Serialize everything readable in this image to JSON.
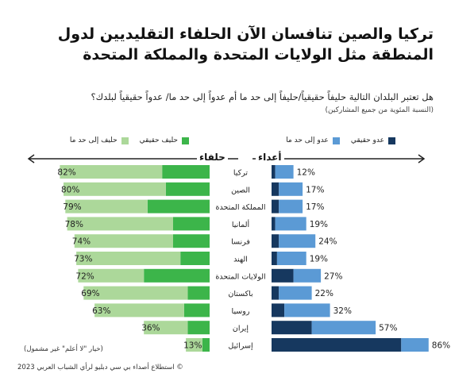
{
  "title": "تركيا والصين تنافسان الآن الحلفاء التقليديين لدول المنطقة مثل الولايات المتحدة والمملكة المتحدة",
  "question": "هل تعتبر البلدان التالية حليفاً حقيقياً/حليفاً إلى حد ما أم عدواً إلى حد ما/ عدواً حقيقياً لبلدك؟",
  "note": "(النسبة المئوية من جميع المشاركين)",
  "legend": {
    "true_ally": "حليف حقيقي",
    "somewhat_ally": "حليف إلى حد ما",
    "true_enemy": "عدو حقيقي",
    "somewhat_enemy": "عدو إلى حد ما"
  },
  "group_labels": {
    "allies": "حلفاء",
    "enemies": "أعداء"
  },
  "footnote": "(خيار \"لا أعلم\" غير مشمول)",
  "copyright": "© استطلاع أصداء بي سي دبليو لرأي الشباب العربي 2023",
  "colors": {
    "true_ally": "#3cb54a",
    "somewhat_ally": "#acd89a",
    "true_enemy": "#16385f",
    "somewhat_enemy": "#5b9ad5"
  },
  "chart_data": {
    "type": "bar",
    "categories": [
      "تركيا",
      "الصين",
      "المملكة المتحدة",
      "ألمانيا",
      "فرنسا",
      "الهند",
      "الولايات المتحدة",
      "باكستان",
      "روسيا",
      "إيران",
      "إسرائيل"
    ],
    "series": [
      {
        "name": "حليف حقيقي",
        "values": [
          26,
          24,
          34,
          20,
          20,
          16,
          36,
          12,
          14,
          12,
          4
        ]
      },
      {
        "name": "حليف إلى حد ما",
        "values": [
          56,
          56,
          45,
          58,
          54,
          57,
          36,
          57,
          49,
          24,
          9
        ]
      },
      {
        "name": "عدو حقيقي",
        "values": [
          2,
          4,
          4,
          2,
          4,
          3,
          12,
          4,
          7,
          22,
          71
        ]
      },
      {
        "name": "عدو إلى حد ما",
        "values": [
          10,
          13,
          13,
          17,
          20,
          16,
          15,
          18,
          25,
          35,
          15
        ]
      }
    ],
    "ally_totals": [
      "82%",
      "80%",
      "79%",
      "78%",
      "74%",
      "73%",
      "72%",
      "69%",
      "63%",
      "36%",
      "13%"
    ],
    "enemy_totals": [
      "12%",
      "17%",
      "17%",
      "19%",
      "24%",
      "19%",
      "27%",
      "22%",
      "32%",
      "57%",
      "86%"
    ],
    "xlim": [
      0,
      86
    ]
  }
}
